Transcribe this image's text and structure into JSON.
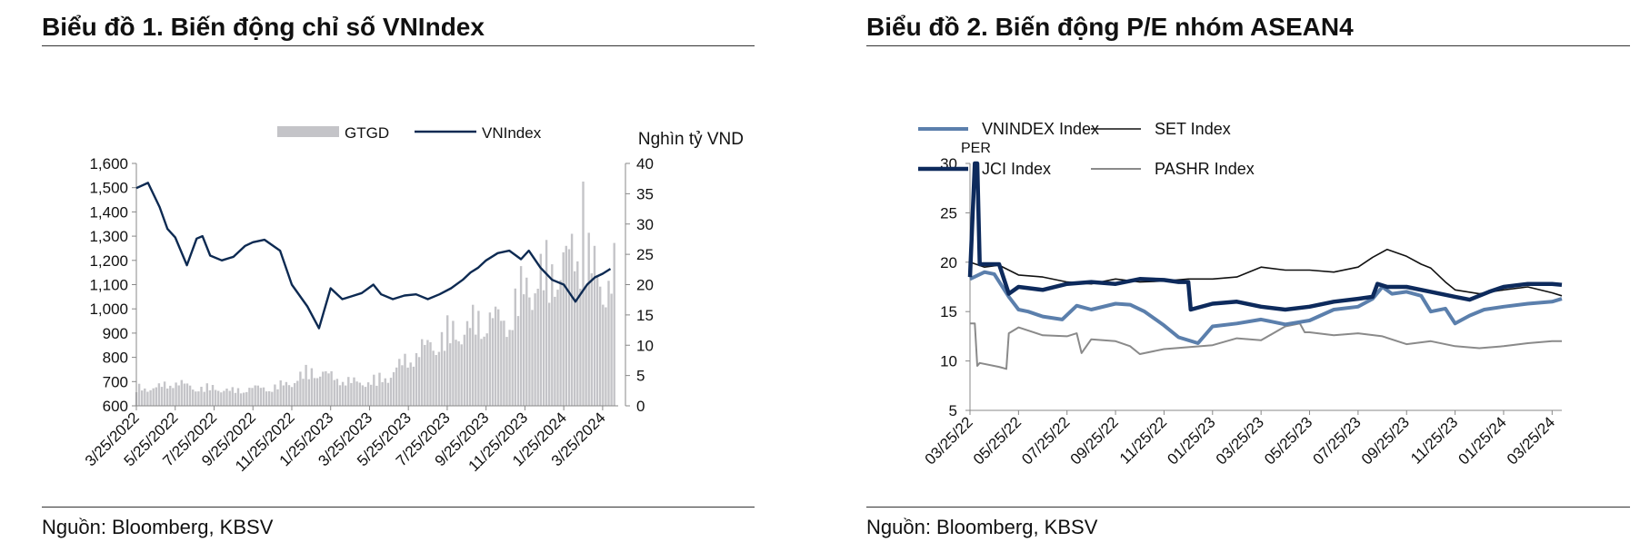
{
  "left": {
    "title": "Biểu đồ 1. Biến động chỉ số VNIndex",
    "source": "Nguồn: Bloomberg, KBSV"
  },
  "right": {
    "title": "Biểu đồ 2. Biến động P/E nhóm ASEAN4",
    "source": "Nguồn: Bloomberg, KBSV"
  },
  "colors": {
    "vnindex_line": "#0d2a52",
    "volume_bars": "#c4c4c8",
    "pe_vnindex": "#5b7fac",
    "pe_set": "#111111",
    "pe_jci": "#0d2a5c",
    "pe_pashr": "#8a8a8a"
  },
  "chart_data": [
    {
      "type": "line+bar",
      "title": "Biểu đồ 1. Biến động chỉ số VNIndex",
      "legend": [
        "GTGD",
        "VNIndex"
      ],
      "right_axis_label": "Nghìn tỷ VND",
      "x_tick_labels": [
        "3/25/2022",
        "5/25/2022",
        "7/25/2022",
        "9/25/2022",
        "11/25/2022",
        "1/25/2023",
        "3/25/2023",
        "5/25/2023",
        "7/25/2023",
        "9/25/2023",
        "11/25/2023",
        "1/25/2024",
        "3/25/2024"
      ],
      "y_left": {
        "min": 600,
        "max": 1600,
        "ticks": [
          "600",
          "700",
          "800",
          "900",
          "1,000",
          "1,100",
          "1,200",
          "1,300",
          "1,400",
          "1,500",
          "1,600"
        ]
      },
      "y_right": {
        "min": 0,
        "max": 40,
        "ticks": [
          "0",
          "5",
          "10",
          "15",
          "20",
          "25",
          "30",
          "35",
          "40"
        ]
      },
      "vnindex_series": {
        "name": "VNIndex",
        "t": [
          0,
          0.3,
          0.6,
          0.8,
          1.0,
          1.3,
          1.55,
          1.7,
          1.9,
          2.2,
          2.5,
          2.8,
          3.0,
          3.3,
          3.7,
          4.0,
          4.4,
          4.7,
          5.0,
          5.3,
          5.5,
          5.8,
          6.1,
          6.3,
          6.6,
          6.9,
          7.2,
          7.5,
          7.8,
          8.1,
          8.4,
          8.6,
          8.8,
          9.0,
          9.3,
          9.6,
          9.9,
          10.1,
          10.4,
          10.7,
          11.0,
          11.3,
          11.6,
          11.8,
          12.0,
          12.2
        ],
        "values": [
          1498,
          1520,
          1420,
          1330,
          1295,
          1180,
          1290,
          1300,
          1220,
          1200,
          1215,
          1260,
          1275,
          1285,
          1240,
          1100,
          1010,
          920,
          1085,
          1040,
          1050,
          1065,
          1100,
          1060,
          1040,
          1055,
          1060,
          1040,
          1060,
          1085,
          1120,
          1150,
          1170,
          1200,
          1230,
          1240,
          1205,
          1240,
          1170,
          1120,
          1100,
          1030,
          1100,
          1130,
          1145,
          1165
        ]
      },
      "volume_series": {
        "name": "GTGD",
        "t": [
          0,
          0.5,
          1.0,
          1.5,
          2.0,
          2.5,
          3.0,
          3.5,
          4.0,
          4.5,
          5.0,
          5.5,
          6.0,
          6.5,
          7.0,
          7.5,
          8.0,
          8.5,
          9.0,
          9.5,
          10.0,
          10.5,
          11.0,
          11.5,
          12.0,
          12.3
        ],
        "values": [
          3,
          3,
          4,
          3,
          3,
          2.5,
          3,
          3,
          4,
          6,
          5,
          4,
          4,
          5,
          8,
          10,
          12,
          13,
          15,
          14,
          20,
          22,
          24,
          26,
          20,
          22
        ]
      }
    },
    {
      "type": "line",
      "title": "Biểu đồ 2. Biến động P/E nhóm ASEAN4",
      "y_label": "PER",
      "y_range": [
        5,
        30
      ],
      "y_ticks": [
        "5",
        "10",
        "15",
        "20",
        "25",
        "30"
      ],
      "x_tick_labels": [
        "03/25/22",
        "05/25/22",
        "07/25/22",
        "09/25/22",
        "11/25/22",
        "01/25/23",
        "03/25/23",
        "05/25/23",
        "07/25/23",
        "09/25/23",
        "11/25/23",
        "01/25/24",
        "03/25/24"
      ],
      "series": [
        {
          "name": "VNINDEX Index",
          "t": [
            0,
            0.3,
            0.5,
            0.8,
            1.0,
            1.2,
            1.5,
            1.9,
            2.2,
            2.5,
            3.0,
            3.3,
            3.6,
            4.0,
            4.3,
            4.7,
            5.0,
            5.5,
            6.0,
            6.5,
            7.0,
            7.5,
            8.0,
            8.3,
            8.5,
            8.7,
            9.0,
            9.3,
            9.5,
            9.8,
            10.0,
            10.3,
            10.6,
            11.0,
            11.5,
            12.0,
            12.2
          ],
          "values": [
            18.3,
            19.0,
            18.8,
            16.5,
            15.2,
            15.0,
            14.5,
            14.2,
            15.6,
            15.2,
            15.8,
            15.7,
            15.0,
            13.6,
            12.4,
            11.8,
            13.5,
            13.8,
            14.2,
            13.7,
            14.1,
            15.2,
            15.5,
            16.3,
            17.5,
            16.8,
            17.0,
            16.6,
            15.0,
            15.3,
            13.8,
            14.6,
            15.2,
            15.5,
            15.8,
            16.0,
            16.3
          ]
        },
        {
          "name": "SET Index",
          "t": [
            0,
            0.3,
            0.6,
            1.0,
            1.5,
            2.0,
            2.5,
            3.0,
            3.5,
            4.0,
            4.5,
            5.0,
            5.5,
            6.0,
            6.5,
            7.0,
            7.5,
            8.0,
            8.3,
            8.6,
            9.0,
            9.3,
            9.5,
            9.8,
            10.0,
            10.5,
            11.0,
            11.5,
            12.0,
            12.2
          ],
          "values": [
            20.0,
            19.5,
            19.7,
            18.7,
            18.5,
            18.0,
            17.8,
            18.3,
            18.0,
            18.1,
            18.3,
            18.3,
            18.5,
            19.5,
            19.2,
            19.2,
            19.0,
            19.5,
            20.5,
            21.3,
            20.6,
            19.8,
            19.4,
            18.0,
            17.2,
            16.8,
            17.2,
            17.5,
            16.9,
            16.6
          ]
        },
        {
          "name": "JCI Index",
          "t": [
            0,
            0.1,
            0.15,
            0.2,
            0.6,
            0.8,
            1.0,
            1.5,
            2.0,
            2.5,
            3.0,
            3.5,
            4.0,
            4.3,
            4.5,
            4.55,
            5.0,
            5.5,
            6.0,
            6.5,
            7.0,
            7.5,
            8.0,
            8.3,
            8.4,
            8.6,
            9.0,
            9.5,
            10.0,
            10.3,
            10.7,
            11.0,
            11.5,
            12.0,
            12.2
          ],
          "values": [
            18.5,
            30,
            30,
            19.8,
            19.8,
            16.8,
            17.5,
            17.2,
            17.8,
            18.0,
            17.8,
            18.3,
            18.2,
            18.0,
            18.0,
            15.2,
            15.8,
            16.0,
            15.5,
            15.2,
            15.5,
            16.0,
            16.3,
            16.5,
            17.8,
            17.5,
            17.5,
            17.0,
            16.5,
            16.2,
            17.0,
            17.5,
            17.8,
            17.8,
            17.7
          ]
        },
        {
          "name": "PASHR Index",
          "t": [
            0,
            0.1,
            0.15,
            0.2,
            0.6,
            0.75,
            0.8,
            1.0,
            1.5,
            2.0,
            2.2,
            2.3,
            2.5,
            3.0,
            3.3,
            3.5,
            4.0,
            4.5,
            5.0,
            5.5,
            6.0,
            6.5,
            6.8,
            6.9,
            7.0,
            7.5,
            8.0,
            8.5,
            9.0,
            9.5,
            10.0,
            10.5,
            11.0,
            11.5,
            12.0,
            12.2
          ],
          "values": [
            13.8,
            13.8,
            9.5,
            9.8,
            9.4,
            9.2,
            12.8,
            13.4,
            12.6,
            12.5,
            12.8,
            10.8,
            12.2,
            12.0,
            11.5,
            10.7,
            11.2,
            11.4,
            11.6,
            12.3,
            12.1,
            13.5,
            13.8,
            12.9,
            12.9,
            12.6,
            12.8,
            12.5,
            11.7,
            12.0,
            11.5,
            11.3,
            11.5,
            11.8,
            12.0,
            12.0
          ]
        }
      ]
    }
  ]
}
